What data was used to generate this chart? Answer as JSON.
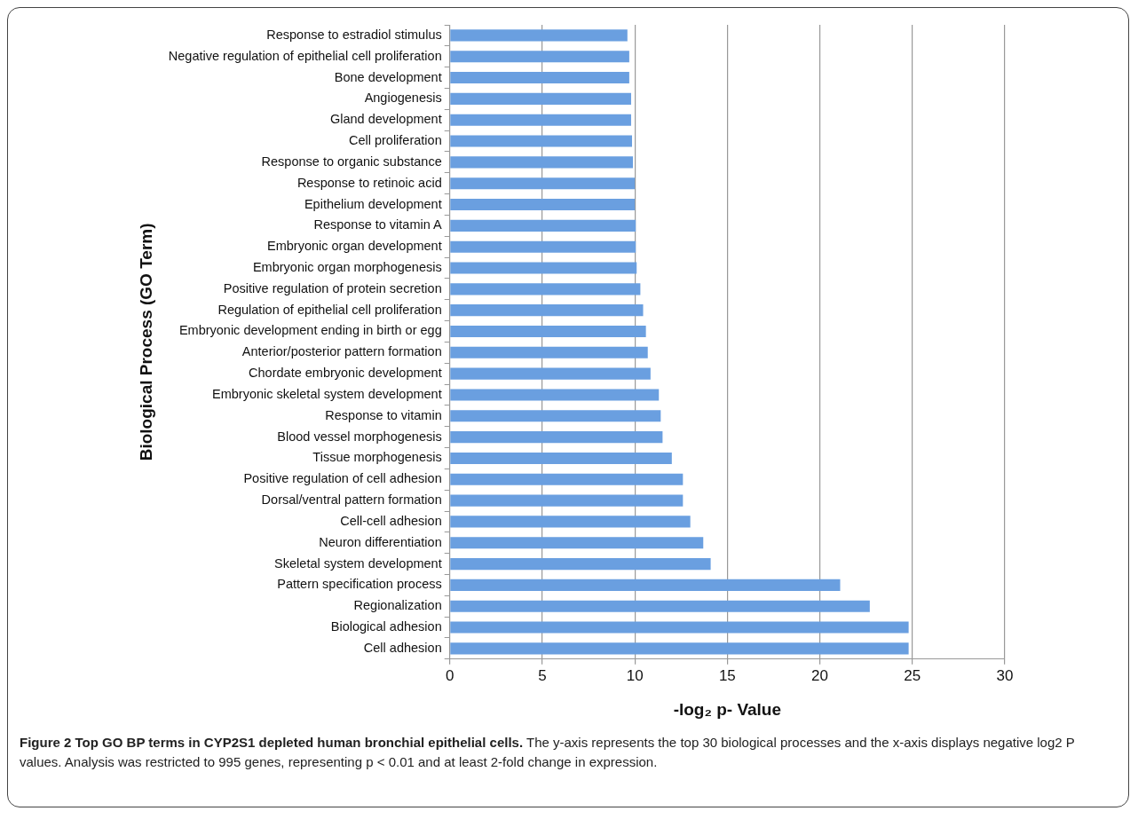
{
  "chart_data": {
    "type": "bar",
    "orientation": "horizontal",
    "xlabel": "-log₂ p- Value",
    "ylabel": "Biological Process (GO Term)",
    "categories": [
      "Response to estradiol stimulus",
      "Negative regulation of epithelial cell proliferation",
      "Bone development",
      "Angiogenesis",
      "Gland development",
      "Cell proliferation",
      "Response to organic substance",
      "Response to retinoic acid",
      "Epithelium development",
      "Response to vitamin A",
      "Embryonic organ development",
      "Embryonic organ morphogenesis",
      "Positive regulation of protein secretion",
      "Regulation of epithelial cell proliferation",
      "Embryonic development ending in birth or egg",
      "Anterior/posterior pattern formation",
      "Chordate embryonic development",
      "Embryonic skeletal system development",
      "Response to vitamin",
      "Blood vessel morphogenesis",
      "Tissue morphogenesis",
      "Positive regulation of cell adhesion",
      "Dorsal/ventral pattern formation",
      "Cell-cell adhesion",
      "Neuron differentiation",
      "Skeletal system development",
      "Pattern specification process",
      "Regionalization",
      "Biological adhesion",
      "Cell adhesion"
    ],
    "values": [
      9.6,
      9.7,
      9.7,
      9.8,
      9.8,
      9.85,
      9.9,
      10.0,
      10.0,
      10.05,
      10.05,
      10.1,
      10.3,
      10.45,
      10.6,
      10.7,
      10.85,
      11.3,
      11.4,
      11.5,
      12.0,
      12.6,
      12.6,
      13.0,
      13.7,
      14.1,
      21.1,
      22.7,
      24.8,
      24.8
    ],
    "color": "#6a9fe0",
    "xlim": [
      0,
      30
    ],
    "xticks": [
      0,
      5,
      10,
      15,
      20,
      25,
      30
    ],
    "grid": "x",
    "legend": false,
    "annotations": [
      "Figure 2 Top GO BP terms in CYP2S1 depleted human bronchial epithelial cells. The y-axis represents the top 30 biological processes and the x-axis displays negative log2 P values. Analysis was restricted to 995 genes, representing p < 0.01 and at least 2-fold change in expression."
    ]
  }
}
